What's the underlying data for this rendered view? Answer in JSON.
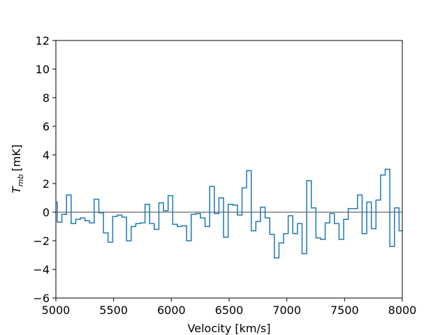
{
  "chart_data": {
    "type": "step",
    "xlabel": "Velocity [km/s]",
    "ylabel": {
      "symbol": "T",
      "subscript": "mb",
      "unit": "[mK]"
    },
    "x": [
      4992,
      5032,
      5072,
      5112,
      5152,
      5192,
      5232,
      5272,
      5312,
      5352,
      5392,
      5432,
      5472,
      5512,
      5552,
      5592,
      5632,
      5672,
      5712,
      5752,
      5792,
      5832,
      5872,
      5912,
      5952,
      5992,
      6032,
      6072,
      6112,
      6152,
      6192,
      6232,
      6272,
      6312,
      6352,
      6392,
      6432,
      6472,
      6512,
      6552,
      6592,
      6632,
      6672,
      6712,
      6752,
      6792,
      6832,
      6872,
      6912,
      6952,
      6992,
      7032,
      7072,
      7112,
      7152,
      7192,
      7232,
      7272,
      7312,
      7352,
      7392,
      7432,
      7472,
      7512,
      7552,
      7592,
      7632,
      7672,
      7712,
      7752,
      7792,
      7832,
      7872,
      7912,
      7952,
      7992
    ],
    "series": [
      {
        "color": "#1f77b4",
        "values": [
          0.7,
          -0.7,
          -0.15,
          1.2,
          -0.8,
          -0.5,
          -0.4,
          -0.6,
          -0.75,
          0.9,
          -0.05,
          -1.45,
          -2.1,
          -0.3,
          -0.2,
          -0.35,
          -2.0,
          -1.0,
          -0.8,
          -0.75,
          0.55,
          -0.8,
          -1.2,
          0.65,
          0.1,
          1.15,
          -0.85,
          -1.0,
          -0.95,
          -2.0,
          -0.15,
          -0.1,
          -0.4,
          -1.0,
          1.8,
          -0.1,
          1.0,
          -1.75,
          0.55,
          0.5,
          -0.2,
          1.7,
          2.9,
          -1.3,
          -0.65,
          0.35,
          -0.4,
          -1.55,
          -3.2,
          -2.15,
          -1.5,
          -0.25,
          -1.5,
          -0.8,
          -2.9,
          2.2,
          0.3,
          -1.8,
          -1.9,
          -0.75,
          -0.1,
          -0.8,
          -1.9,
          -0.5,
          0.25,
          0.25,
          1.2,
          -1.5,
          0.7,
          -1.15,
          0.85,
          2.6,
          3.0,
          -2.4,
          0.3,
          -1.3
        ]
      }
    ],
    "bin_width": 40,
    "hline": {
      "value": 0,
      "color": "#808080"
    },
    "xlim": [
      5000,
      8000
    ],
    "xticks": [
      5000,
      5500,
      6000,
      6500,
      7000,
      7500,
      8000
    ],
    "ylim": [
      -6,
      12
    ],
    "yticks": [
      {
        "value": -6,
        "label": "−6"
      },
      {
        "value": -4,
        "label": "−4"
      },
      {
        "value": -2,
        "label": "−2"
      },
      0,
      2,
      4,
      6,
      8,
      10,
      12
    ],
    "grid": false
  }
}
